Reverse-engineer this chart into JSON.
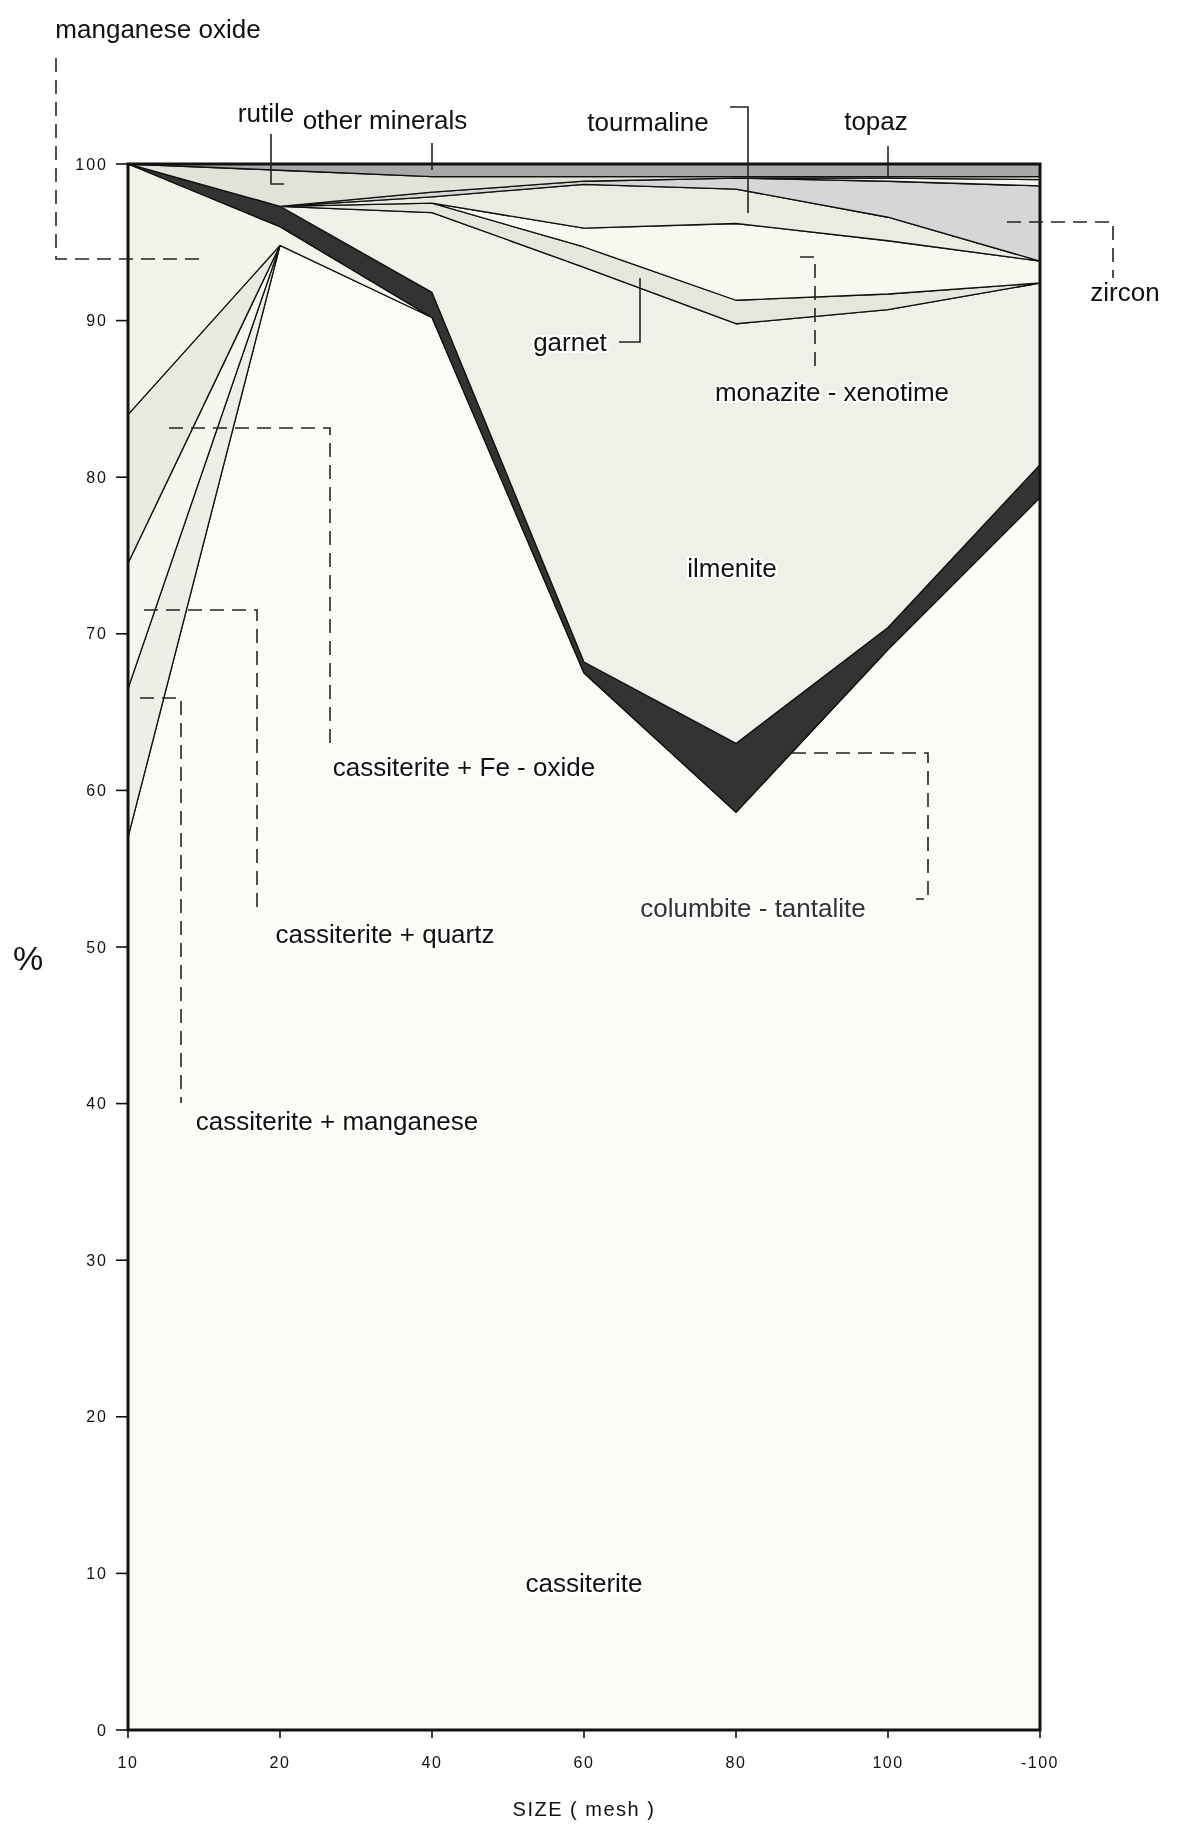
{
  "chart_data": {
    "type": "area",
    "stacked": true,
    "xlabel": "SIZE ( mesh )",
    "ylabel": "%",
    "categories": [
      "10",
      "20",
      "40",
      "60",
      "80",
      "100",
      "-100"
    ],
    "ylim": [
      0,
      100
    ],
    "yticks": [
      0,
      10,
      20,
      30,
      40,
      50,
      60,
      70,
      80,
      90,
      100
    ],
    "series": [
      {
        "name": "cassiterite",
        "color": "#fcfcf6",
        "values": [
          57,
          94.8,
          90.2,
          67.5,
          58.6,
          69.0,
          78.7
        ]
      },
      {
        "name": "cassiterite + manganese",
        "color": "#eeeee6",
        "values": [
          9.5,
          0,
          null,
          null,
          null,
          null,
          null
        ]
      },
      {
        "name": "cassiterite + quartz",
        "color": "#f6f6ee",
        "values": [
          8,
          0,
          null,
          null,
          null,
          null,
          null
        ]
      },
      {
        "name": "cassiterite + Fe - oxide",
        "color": "#e9e9e0",
        "values": [
          9.5,
          0,
          null,
          null,
          null,
          null,
          null
        ]
      },
      {
        "name": "manganese oxide",
        "color": "#f3f3ea",
        "values": [
          16,
          1.2,
          0,
          null,
          null,
          null,
          null
        ]
      },
      {
        "name": "columbite - tantalite",
        "color": "#333333",
        "values": [
          0,
          1.3,
          1.6,
          0.7,
          4.4,
          1.4,
          2.1
        ]
      },
      {
        "name": "ilmenite",
        "color": "#f0f0e8",
        "values": [
          null,
          0,
          5.1,
          25.2,
          26.8,
          20.3,
          11.6
        ]
      },
      {
        "name": "garnet",
        "color": "#e6e6dc",
        "values": [
          null,
          0,
          0.6,
          1.3,
          1.5,
          1.0,
          0
        ]
      },
      {
        "name": "monazite - xenotime",
        "color": "#f8f8f0",
        "values": [
          null,
          null,
          0,
          1.2,
          4.9,
          3.4,
          1.4
        ]
      },
      {
        "name": "tourmaline",
        "color": "#ebebe2",
        "values": [
          null,
          0,
          0.4,
          2.8,
          2.2,
          1.5,
          0
        ]
      },
      {
        "name": "zircon",
        "color": "#d6d6d6",
        "values": [
          null,
          0,
          0.3,
          0.2,
          0.7,
          2.3,
          4.8
        ]
      },
      {
        "name": "topaz",
        "color": "#f4f4ec",
        "values": [
          null,
          null,
          null,
          null,
          0,
          0.2,
          0.4
        ]
      },
      {
        "name": "rutile",
        "color": "#e2e2d8",
        "values": [
          0,
          2.3,
          1.0,
          0.3,
          0.1,
          0.1,
          0.2
        ]
      },
      {
        "name": "other minerals",
        "color": "#a8a8a8",
        "values": [
          0,
          0.4,
          0.8,
          0.8,
          0.8,
          0.8,
          0.8
        ]
      }
    ]
  }
}
